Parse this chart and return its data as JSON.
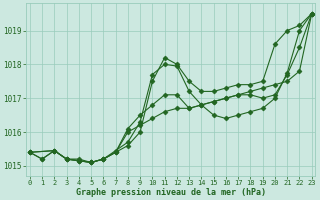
{
  "xlabel": "Graphe pression niveau de la mer (hPa)",
  "bg_color": "#cce8e0",
  "plot_bg_color": "#cce8e0",
  "grid_color": "#99ccbb",
  "line_color": "#226622",
  "ylim": [
    1014.7,
    1019.8
  ],
  "xlim": [
    -0.3,
    23.3
  ],
  "yticks": [
    1015,
    1016,
    1017,
    1018,
    1019
  ],
  "xticks": [
    0,
    1,
    2,
    3,
    4,
    5,
    6,
    7,
    8,
    9,
    10,
    11,
    12,
    13,
    14,
    15,
    16,
    17,
    18,
    19,
    20,
    21,
    22,
    23
  ],
  "series": [
    {
      "x": [
        0,
        1,
        2,
        3,
        4,
        5,
        6,
        7,
        8,
        9,
        10,
        11,
        12,
        13,
        14,
        15,
        16,
        17,
        18,
        19,
        20,
        21,
        22,
        23
      ],
      "y": [
        1015.4,
        1015.2,
        1015.45,
        1015.2,
        1015.2,
        1015.1,
        1015.2,
        1015.4,
        1015.6,
        1016.0,
        1017.5,
        1018.2,
        1018.0,
        1017.5,
        1017.2,
        1017.2,
        1017.3,
        1017.4,
        1017.4,
        1017.5,
        1018.6,
        1019.0,
        1019.15,
        1019.5
      ]
    },
    {
      "x": [
        0,
        1,
        2,
        3,
        4,
        5,
        6,
        7,
        8,
        9,
        10,
        11,
        12,
        13,
        14,
        15,
        16,
        17,
        18,
        19,
        20,
        21,
        22,
        23
      ],
      "y": [
        1015.4,
        1015.2,
        1015.45,
        1015.2,
        1015.15,
        1015.1,
        1015.2,
        1015.45,
        1015.7,
        1016.3,
        1017.7,
        1018.0,
        1017.95,
        1017.2,
        1016.8,
        1016.5,
        1016.4,
        1016.5,
        1016.6,
        1016.7,
        1017.0,
        1017.75,
        1019.0,
        1019.5
      ]
    },
    {
      "x": [
        0,
        2,
        3,
        4,
        5,
        6,
        7,
        8,
        9,
        10,
        11,
        12,
        13,
        14,
        15,
        16,
        17,
        18,
        19,
        20,
        21,
        22,
        23
      ],
      "y": [
        1015.4,
        1015.45,
        1015.2,
        1015.15,
        1015.1,
        1015.2,
        1015.4,
        1016.1,
        1016.5,
        1016.8,
        1017.1,
        1017.1,
        1016.7,
        1016.8,
        1016.9,
        1017.0,
        1017.1,
        1017.1,
        1017.0,
        1017.1,
        1017.7,
        1018.5,
        1019.5
      ]
    },
    {
      "x": [
        0,
        2,
        3,
        4,
        5,
        6,
        7,
        8,
        9,
        10,
        11,
        12,
        13,
        14,
        15,
        16,
        17,
        18,
        19,
        20,
        21,
        22,
        23
      ],
      "y": [
        1015.4,
        1015.45,
        1015.2,
        1015.15,
        1015.1,
        1015.2,
        1015.4,
        1016.0,
        1016.2,
        1016.4,
        1016.6,
        1016.7,
        1016.7,
        1016.8,
        1016.9,
        1017.0,
        1017.1,
        1017.2,
        1017.3,
        1017.4,
        1017.5,
        1017.8,
        1019.5
      ]
    }
  ]
}
